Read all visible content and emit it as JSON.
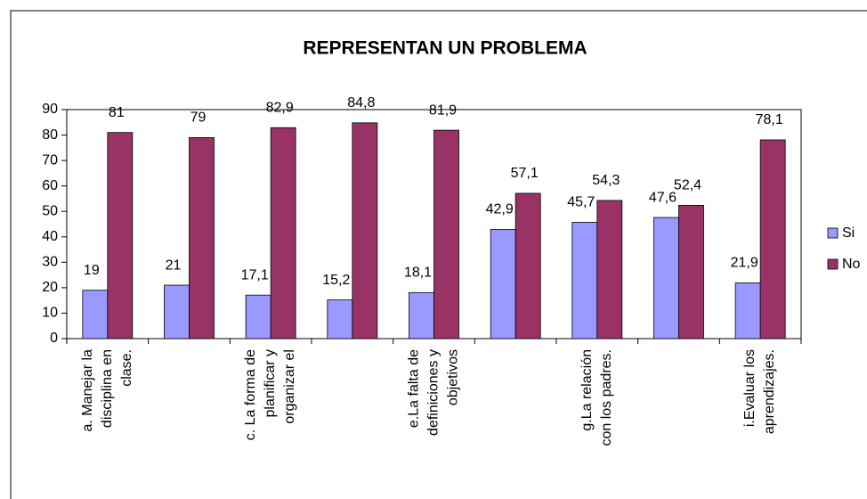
{
  "chart_data": {
    "type": "bar",
    "title": "REPRESENTAN UN PROBLEMA",
    "categories": [
      "a. Manejar la\ndisciplina en\nclase.",
      null,
      "c. La forma de\nplanificar y\norganizar el",
      null,
      "e.La falta de\ndefiniciones y\nobjetivos",
      null,
      "g.La relación\ncon los padres.",
      null,
      "i.Evaluar los\naprendizajes."
    ],
    "series": [
      {
        "name": "Si",
        "color": "#9999ff",
        "values": [
          19,
          21,
          17.1,
          15.2,
          18.1,
          42.9,
          45.7,
          47.6,
          21.9
        ],
        "value_labels": [
          "19",
          "21",
          "17,1",
          "15,2",
          "18,1",
          "42,9",
          "45,7",
          "47,6",
          "21,9"
        ]
      },
      {
        "name": "No",
        "color": "#993366",
        "values": [
          81,
          79,
          82.9,
          84.8,
          81.9,
          57.1,
          54.3,
          52.4,
          78.1
        ],
        "value_labels": [
          "81",
          "79",
          "82,9",
          "84,8",
          "81,9",
          "57,1",
          "54,3",
          "52,4",
          "78,1"
        ]
      }
    ],
    "ylim": [
      0,
      90
    ],
    "yticks": [
      0,
      10,
      20,
      30,
      40,
      50,
      60,
      70,
      80,
      90
    ],
    "grid": false,
    "legend": "right"
  }
}
